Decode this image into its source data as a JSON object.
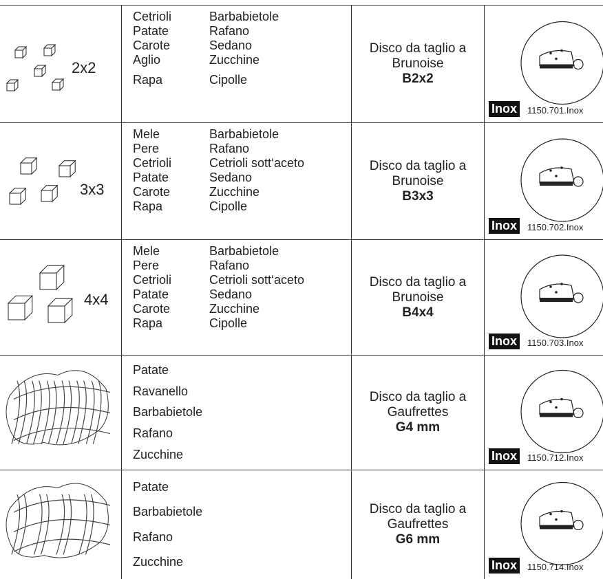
{
  "rows": [
    {
      "size_label": "2x2",
      "vegetables": [
        [
          "Cetrioli",
          "Barbabietole"
        ],
        [
          "Patate",
          "Rafano"
        ],
        [
          "Carote",
          "Sedano"
        ],
        [
          "Aglio",
          "Zucchine"
        ],
        [
          "Rapa",
          "Cipolle"
        ]
      ],
      "disc": {
        "line1": "Disco da taglio a",
        "line2": "Brunoise",
        "code": "B2x2"
      },
      "badge": "Inox",
      "ref": "1150.701.Inox"
    },
    {
      "size_label": "3x3",
      "vegetables": [
        [
          "Mele",
          "Barbabietole"
        ],
        [
          "Pere",
          "Rafano"
        ],
        [
          "Cetrioli",
          "Cetrioli sott‘aceto"
        ],
        [
          "Patate",
          "Sedano"
        ],
        [
          "Carote",
          "Zucchine"
        ],
        [
          "Rapa",
          "Cipolle"
        ]
      ],
      "disc": {
        "line1": "Disco da taglio a",
        "line2": "Brunoise",
        "code": "B3x3"
      },
      "badge": "Inox",
      "ref": "1150.702.Inox"
    },
    {
      "size_label": "4x4",
      "vegetables": [
        [
          "Mele",
          "Barbabietole"
        ],
        [
          "Pere",
          "Rafano"
        ],
        [
          "Cetrioli",
          "Cetrioli sott‘aceto"
        ],
        [
          "Patate",
          "Sedano"
        ],
        [
          "Carote",
          "Zucchine"
        ],
        [
          "Rapa",
          "Cipolle"
        ]
      ],
      "disc": {
        "line1": "Disco da taglio a",
        "line2": "Brunoise",
        "code": "B4x4"
      },
      "badge": "Inox",
      "ref": "1150.703.Inox"
    },
    {
      "vegetables": [
        [
          "Patate"
        ],
        [
          "Ravanello"
        ],
        [
          "Barbabietole"
        ],
        [
          "Rafano"
        ],
        [
          "Zucchine"
        ]
      ],
      "disc": {
        "line1": "Disco da taglio a",
        "line2": "Gaufrettes",
        "code": "G4 mm"
      },
      "badge": "Inox",
      "ref": "1150.712.Inox"
    },
    {
      "vegetables": [
        [
          "Patate"
        ],
        [
          "Barbabietole"
        ],
        [
          "Rafano"
        ],
        [
          "Zucchine"
        ]
      ],
      "disc": {
        "line1": "Disco da taglio a",
        "line2": "Gaufrettes",
        "code": "G6 mm"
      },
      "badge": "Inox",
      "ref": "1150.714.Inox"
    }
  ]
}
